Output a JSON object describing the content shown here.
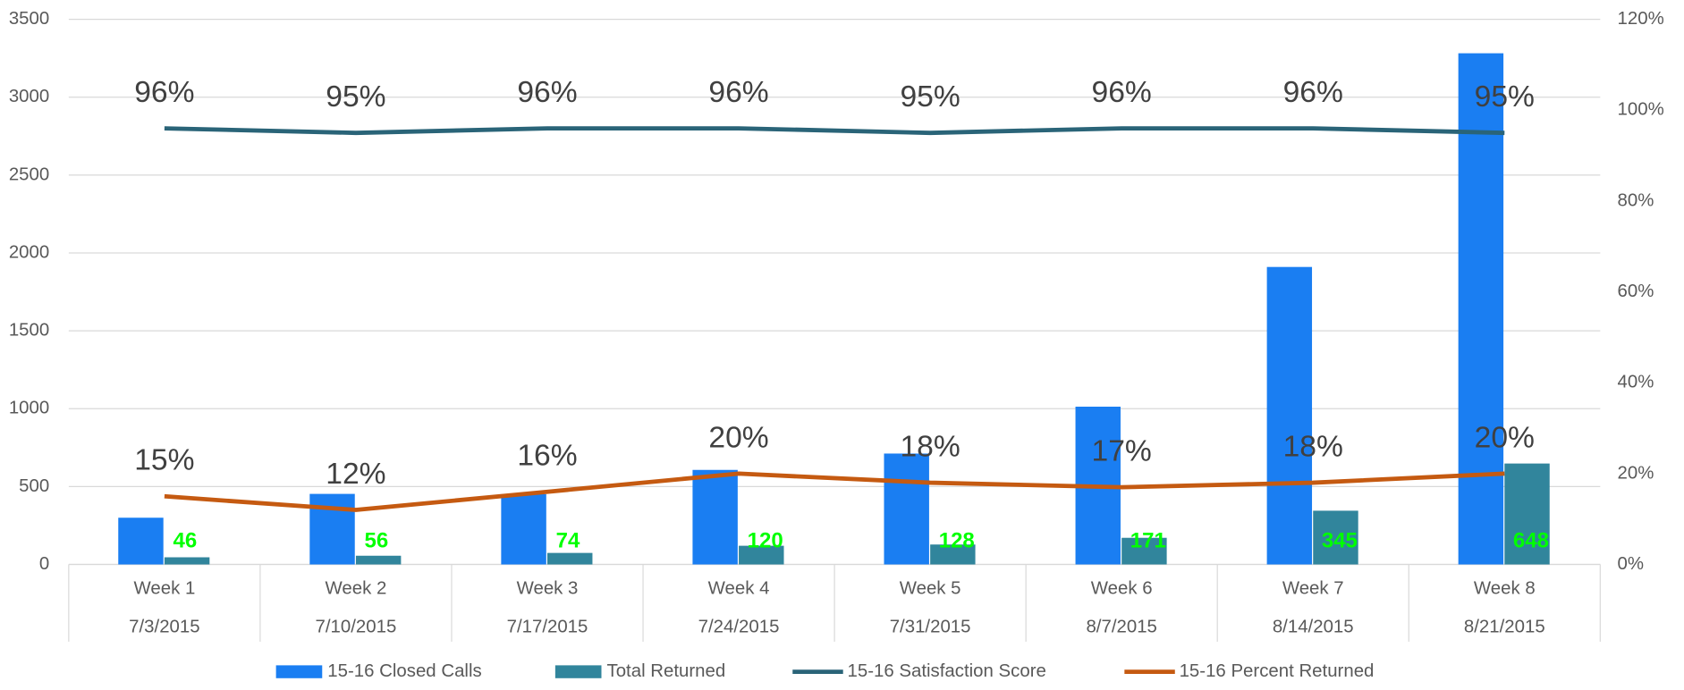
{
  "chart_data": {
    "type": "bar",
    "categories": [
      "Week 1",
      "Week 2",
      "Week 3",
      "Week 4",
      "Week 5",
      "Week 6",
      "Week 7",
      "Week 8"
    ],
    "category_dates": [
      "7/3/2015",
      "7/10/2015",
      "7/17/2015",
      "7/24/2015",
      "7/31/2015",
      "8/7/2015",
      "8/14/2015",
      "8/21/2015"
    ],
    "series": [
      {
        "name": "15-16 Closed Calls",
        "type": "bar",
        "color": "#1a7ef2",
        "label_color": "#ffffff",
        "values": [
          300,
          453,
          451,
          607,
          712,
          1013,
          1910,
          3282
        ]
      },
      {
        "name": "Total Returned",
        "type": "bar",
        "color": "#31859c",
        "label_color": "#00ff00",
        "values": [
          46,
          56,
          74,
          120,
          128,
          171,
          345,
          648
        ]
      },
      {
        "name": "15-16 Satisfaction Score",
        "type": "line",
        "axis": "y2",
        "color": "#2a6478",
        "values": [
          96,
          95,
          96,
          96,
          95,
          96,
          96,
          95
        ],
        "value_labels": [
          "96%",
          "95%",
          "96%",
          "96%",
          "95%",
          "96%",
          "96%",
          "95%"
        ]
      },
      {
        "name": "15-16 Percent Returned",
        "type": "line",
        "axis": "y2",
        "color": "#c55a11",
        "values": [
          15,
          12,
          16,
          20,
          18,
          17,
          18,
          20
        ],
        "value_labels": [
          "15%",
          "12%",
          "16%",
          "20%",
          "18%",
          "17%",
          "18%",
          "20%"
        ]
      }
    ],
    "ylim": [
      0,
      3500
    ],
    "yticks": [
      0,
      500,
      1000,
      1500,
      2000,
      2500,
      3000,
      3500
    ],
    "y2lim": [
      0,
      120
    ],
    "y2ticks": [
      {
        "value": 0,
        "label": "0%"
      },
      {
        "value": 20,
        "label": "20%"
      },
      {
        "value": 40,
        "label": "40%"
      },
      {
        "value": 60,
        "label": "60%"
      },
      {
        "value": 80,
        "label": "80%"
      },
      {
        "value": 100,
        "label": "100%"
      },
      {
        "value": 120,
        "label": "120%"
      }
    ],
    "grid": true,
    "legend": "bottom"
  }
}
